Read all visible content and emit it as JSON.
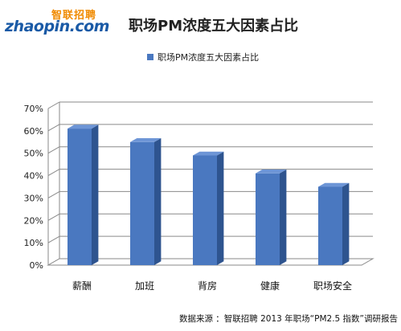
{
  "logo": {
    "cn": "智联招聘",
    "en": "zhaopin.com"
  },
  "chart_data": {
    "type": "bar",
    "title": "职场PM浓度五大因素占比",
    "categories": [
      "薪酬",
      "加班",
      "背房",
      "健康",
      "职场安全"
    ],
    "series": [
      {
        "name": "职场PM浓度五大因素占比",
        "values": [
          61,
          55,
          49,
          41,
          35
        ]
      }
    ],
    "ylim": [
      0,
      70
    ],
    "yticks": [
      "0%",
      "10%",
      "20%",
      "30%",
      "40%",
      "50%",
      "60%",
      "70%"
    ],
    "ytick_values": [
      0,
      10,
      20,
      30,
      40,
      50,
      60,
      70
    ],
    "grid": true,
    "legend_position": "top",
    "colors": {
      "bar_front": "#4a78c0",
      "bar_side": "#2e548f",
      "bar_top": "#6d95d6"
    }
  },
  "source": "数据来源 ：智联招聘 2013 年职场“PM2.5 指数”调研报告"
}
